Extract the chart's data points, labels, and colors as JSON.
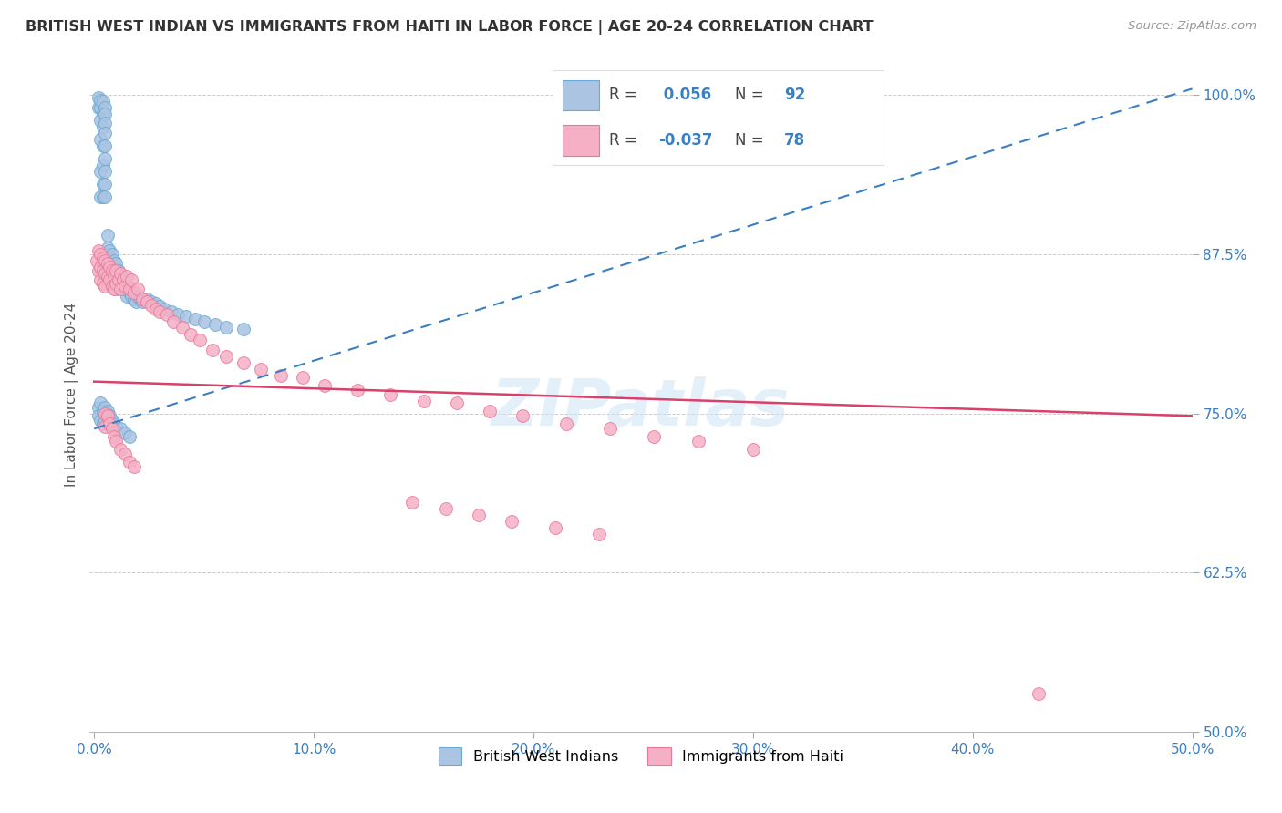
{
  "title": "BRITISH WEST INDIAN VS IMMIGRANTS FROM HAITI IN LABOR FORCE | AGE 20-24 CORRELATION CHART",
  "source": "Source: ZipAtlas.com",
  "ylabel": "In Labor Force | Age 20-24",
  "x_tick_labels": [
    "0.0%",
    "10.0%",
    "20.0%",
    "30.0%",
    "40.0%",
    "50.0%"
  ],
  "x_tick_vals": [
    0.0,
    0.1,
    0.2,
    0.3,
    0.4,
    0.5
  ],
  "y_tick_labels": [
    "50.0%",
    "62.5%",
    "75.0%",
    "87.5%",
    "100.0%"
  ],
  "y_tick_vals": [
    0.5,
    0.625,
    0.75,
    0.875,
    1.0
  ],
  "xlim": [
    -0.002,
    0.5
  ],
  "ylim": [
    0.5,
    1.03
  ],
  "blue_R": 0.056,
  "blue_N": 92,
  "pink_R": -0.037,
  "pink_N": 78,
  "blue_fill": "#aac4e2",
  "pink_fill": "#f5b0c5",
  "blue_edge": "#6aaad4",
  "pink_edge": "#e8799a",
  "blue_line_color": "#3a7fc1",
  "pink_line_color": "#d9406a",
  "legend_label_blue": "British West Indians",
  "legend_label_pink": "Immigrants from Haiti",
  "watermark": "ZIPatlas",
  "blue_trend_x": [
    0.0,
    0.5
  ],
  "blue_trend_y": [
    0.738,
    1.005
  ],
  "pink_trend_x": [
    0.0,
    0.5
  ],
  "pink_trend_y": [
    0.775,
    0.748
  ],
  "blue_scatter_x": [
    0.002,
    0.002,
    0.003,
    0.003,
    0.003,
    0.003,
    0.003,
    0.003,
    0.004,
    0.004,
    0.004,
    0.004,
    0.004,
    0.004,
    0.004,
    0.005,
    0.005,
    0.005,
    0.005,
    0.005,
    0.005,
    0.005,
    0.005,
    0.005,
    0.006,
    0.006,
    0.006,
    0.006,
    0.006,
    0.006,
    0.007,
    0.007,
    0.007,
    0.007,
    0.007,
    0.008,
    0.008,
    0.008,
    0.008,
    0.009,
    0.009,
    0.009,
    0.01,
    0.01,
    0.01,
    0.01,
    0.011,
    0.011,
    0.012,
    0.012,
    0.013,
    0.013,
    0.014,
    0.015,
    0.015,
    0.016,
    0.017,
    0.018,
    0.019,
    0.02,
    0.021,
    0.022,
    0.024,
    0.026,
    0.028,
    0.03,
    0.032,
    0.035,
    0.038,
    0.042,
    0.046,
    0.05,
    0.055,
    0.06,
    0.068,
    0.002,
    0.002,
    0.003,
    0.003,
    0.004,
    0.004,
    0.005,
    0.005,
    0.006,
    0.006,
    0.007,
    0.008,
    0.009,
    0.01,
    0.012,
    0.014,
    0.016
  ],
  "blue_scatter_y": [
    0.99,
    0.998,
    0.99,
    0.996,
    0.98,
    0.965,
    0.94,
    0.92,
    0.995,
    0.985,
    0.975,
    0.96,
    0.945,
    0.93,
    0.92,
    0.99,
    0.985,
    0.978,
    0.97,
    0.96,
    0.95,
    0.94,
    0.93,
    0.92,
    0.89,
    0.88,
    0.875,
    0.868,
    0.86,
    0.855,
    0.878,
    0.872,
    0.865,
    0.858,
    0.852,
    0.875,
    0.868,
    0.862,
    0.855,
    0.87,
    0.865,
    0.858,
    0.868,
    0.862,
    0.855,
    0.848,
    0.862,
    0.855,
    0.858,
    0.85,
    0.855,
    0.848,
    0.852,
    0.848,
    0.842,
    0.845,
    0.842,
    0.84,
    0.838,
    0.842,
    0.84,
    0.838,
    0.84,
    0.838,
    0.836,
    0.834,
    0.832,
    0.83,
    0.828,
    0.826,
    0.824,
    0.822,
    0.82,
    0.818,
    0.816,
    0.755,
    0.748,
    0.758,
    0.745,
    0.752,
    0.742,
    0.755,
    0.745,
    0.752,
    0.742,
    0.748,
    0.745,
    0.742,
    0.74,
    0.738,
    0.735,
    0.732
  ],
  "pink_scatter_x": [
    0.001,
    0.002,
    0.002,
    0.003,
    0.003,
    0.003,
    0.004,
    0.004,
    0.004,
    0.005,
    0.005,
    0.005,
    0.006,
    0.006,
    0.007,
    0.007,
    0.008,
    0.008,
    0.009,
    0.009,
    0.01,
    0.01,
    0.011,
    0.012,
    0.012,
    0.013,
    0.014,
    0.015,
    0.016,
    0.017,
    0.018,
    0.02,
    0.022,
    0.024,
    0.026,
    0.028,
    0.03,
    0.033,
    0.036,
    0.04,
    0.044,
    0.048,
    0.054,
    0.06,
    0.068,
    0.076,
    0.085,
    0.095,
    0.105,
    0.12,
    0.135,
    0.15,
    0.165,
    0.18,
    0.195,
    0.215,
    0.235,
    0.255,
    0.275,
    0.3,
    0.145,
    0.16,
    0.175,
    0.19,
    0.21,
    0.23,
    0.005,
    0.005,
    0.006,
    0.007,
    0.008,
    0.009,
    0.01,
    0.012,
    0.014,
    0.016,
    0.018,
    0.43
  ],
  "pink_scatter_y": [
    0.87,
    0.878,
    0.862,
    0.875,
    0.865,
    0.855,
    0.872,
    0.862,
    0.852,
    0.87,
    0.86,
    0.85,
    0.868,
    0.858,
    0.865,
    0.855,
    0.862,
    0.85,
    0.858,
    0.848,
    0.862,
    0.852,
    0.855,
    0.86,
    0.848,
    0.855,
    0.85,
    0.858,
    0.848,
    0.855,
    0.845,
    0.848,
    0.84,
    0.838,
    0.835,
    0.832,
    0.83,
    0.828,
    0.822,
    0.818,
    0.812,
    0.808,
    0.8,
    0.795,
    0.79,
    0.785,
    0.78,
    0.778,
    0.772,
    0.768,
    0.765,
    0.76,
    0.758,
    0.752,
    0.748,
    0.742,
    0.738,
    0.732,
    0.728,
    0.722,
    0.68,
    0.675,
    0.67,
    0.665,
    0.66,
    0.655,
    0.75,
    0.74,
    0.748,
    0.742,
    0.738,
    0.732,
    0.728,
    0.722,
    0.718,
    0.712,
    0.708,
    0.53
  ]
}
